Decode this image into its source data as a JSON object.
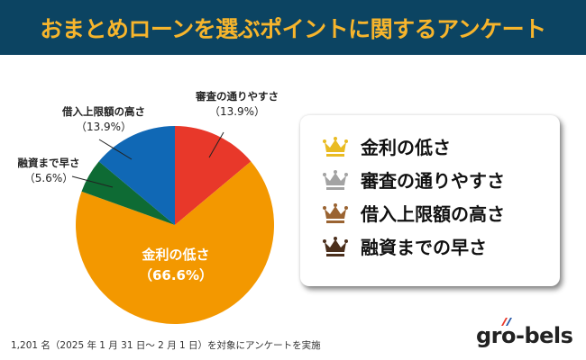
{
  "header": {
    "title": "おまとめローンを選ぶポイントに関するアンケート"
  },
  "chart_data": {
    "type": "pie",
    "title": "おまとめローンを選ぶポイントに関するアンケート",
    "start": "top",
    "direction": "clockwise",
    "slices": [
      {
        "label": "審査の通りやすさ",
        "value": 13.9,
        "value_label": "（13.9%）",
        "color": "#e8382a"
      },
      {
        "label": "金利の低さ",
        "value": 66.6,
        "value_label": "（66.6%）",
        "color": "#f39800"
      },
      {
        "label": "融資まで早さ",
        "value": 5.6,
        "value_label": "（5.6%）",
        "color": "#0e6b34"
      },
      {
        "label": "借入上限額の高さ",
        "value": 13.9,
        "value_label": "（13.9%）",
        "color": "#1068b5"
      }
    ]
  },
  "legend": {
    "items": [
      {
        "label": "金利の低さ",
        "icon": "gold-crown-icon",
        "color": "#e9bb22"
      },
      {
        "label": "審査の通りやすさ",
        "icon": "silver-crown-icon",
        "color": "#a3a3a3"
      },
      {
        "label": "借入上限額の高さ",
        "icon": "bronze-crown-icon",
        "color": "#9a6331"
      },
      {
        "label": "融資までの早さ",
        "icon": "brown-crown-icon",
        "color": "#4b2f1c"
      }
    ]
  },
  "footer": {
    "note": "1,201 名（2025 年 1 月 31 日～ 2 月 1 日）を対象にアンケートを実施"
  },
  "logo": {
    "text": "gro-bels"
  }
}
